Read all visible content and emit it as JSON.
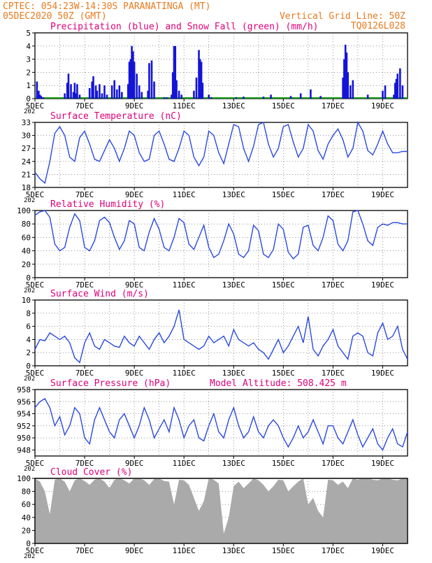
{
  "header": {
    "line1_left": "CPTEC:  054:23W-14:30S  PARANATINGA (MT)",
    "line2_left": "05DEC2020 50Z (GMT)",
    "line1_right": "Vertical Grid Line: 50Z",
    "line2_right": "TQ0126L028",
    "colors": {
      "header": "#e87a1e",
      "title": "#e0007a"
    }
  },
  "x_axis": {
    "labels": [
      "5DEC",
      "7DEC",
      "9DEC",
      "11DEC",
      "13DEC",
      "15DEC",
      "17DEC",
      "19DEC"
    ],
    "days": [
      0,
      2,
      4,
      6,
      8,
      10,
      12,
      14
    ],
    "span_days": 15.0,
    "under_label": "202"
  },
  "chart_data": [
    {
      "id": "precip",
      "type": "bar",
      "title": "Precipitation (blue) and Snow Fall (green) (mm/h)",
      "ylim": [
        0,
        5
      ],
      "yticks": [
        0,
        1,
        2,
        3,
        4,
        5
      ],
      "colors": {
        "rain": "#1414d8",
        "snow": "#18a018"
      },
      "series": [
        {
          "name": "rain",
          "x": [
            0.08,
            0.15,
            0.2,
            0.25,
            0.33,
            1.2,
            1.3,
            1.35,
            1.45,
            1.55,
            1.6,
            1.65,
            1.7,
            1.8,
            2.2,
            2.3,
            2.35,
            2.45,
            2.5,
            2.6,
            2.7,
            2.8,
            2.9,
            3.1,
            3.2,
            3.3,
            3.4,
            3.5,
            3.75,
            3.8,
            3.85,
            3.9,
            3.95,
            4.0,
            4.1,
            4.2,
            4.3,
            4.55,
            4.6,
            4.7,
            4.8,
            5.2,
            5.3,
            5.5,
            5.55,
            5.6,
            5.65,
            5.7,
            5.8,
            5.9,
            6.4,
            6.5,
            6.6,
            6.65,
            6.7,
            6.75,
            7.0,
            7.1,
            8.1,
            8.4,
            9.2,
            9.5,
            10.3,
            10.7,
            11.1,
            11.5,
            12.4,
            12.45,
            12.5,
            12.55,
            12.6,
            12.7,
            12.8,
            13.4,
            14.0,
            14.1,
            14.45,
            14.5,
            14.55,
            14.6,
            14.7,
            14.8
          ],
          "values": [
            1.3,
            0.6,
            0.3,
            0.2,
            0.1,
            0.4,
            1.2,
            1.9,
            1.1,
            0.5,
            1.2,
            0.4,
            1.1,
            0.3,
            0.8,
            1.3,
            1.7,
            1.0,
            0.6,
            1.1,
            0.4,
            1.0,
            0.3,
            1.0,
            1.4,
            0.7,
            1.0,
            0.5,
            1.1,
            2.8,
            3.0,
            4.0,
            3.6,
            2.8,
            1.9,
            1.0,
            0.5,
            0.6,
            2.7,
            2.9,
            1.3,
            0.1,
            0.1,
            0.3,
            2.0,
            4.0,
            4.0,
            1.4,
            0.6,
            0.3,
            0.6,
            1.6,
            3.7,
            3.0,
            2.8,
            1.2,
            0.3,
            0.1,
            0.1,
            0.15,
            0.15,
            0.3,
            0.2,
            0.4,
            0.7,
            0.2,
            1.6,
            3.0,
            4.1,
            3.5,
            2.0,
            1.0,
            1.4,
            0.3,
            0.6,
            1.0,
            0.3,
            1.2,
            1.5,
            1.9,
            2.3,
            1.0
          ]
        },
        {
          "name": "snow",
          "x": [],
          "values": []
        }
      ]
    },
    {
      "id": "temp",
      "type": "line",
      "title": "Surface Temperature (nC)",
      "ylim": [
        18,
        33
      ],
      "yticks": [
        18,
        21,
        24,
        27,
        30,
        33
      ],
      "color": "#2a4ae0",
      "x": [
        0,
        0.2,
        0.4,
        0.6,
        0.8,
        1.0,
        1.2,
        1.4,
        1.6,
        1.8,
        2.0,
        2.2,
        2.4,
        2.6,
        2.8,
        3.0,
        3.2,
        3.4,
        3.6,
        3.8,
        4.0,
        4.2,
        4.4,
        4.6,
        4.8,
        5.0,
        5.2,
        5.4,
        5.6,
        5.8,
        6.0,
        6.2,
        6.4,
        6.6,
        6.8,
        7.0,
        7.2,
        7.4,
        7.6,
        7.8,
        8.0,
        8.2,
        8.4,
        8.6,
        8.8,
        9.0,
        9.2,
        9.4,
        9.6,
        9.8,
        10.0,
        10.2,
        10.4,
        10.6,
        10.8,
        11.0,
        11.2,
        11.4,
        11.6,
        11.8,
        12.0,
        12.2,
        12.4,
        12.6,
        12.8,
        13.0,
        13.2,
        13.4,
        13.6,
        13.8,
        14.0,
        14.2,
        14.4,
        14.6,
        14.8,
        15.0
      ],
      "values": [
        21.5,
        20.0,
        19.0,
        24.0,
        30.5,
        32.0,
        30.0,
        25.0,
        24.0,
        29.5,
        31.0,
        28.0,
        24.5,
        24.0,
        26.5,
        29.0,
        27.0,
        24.0,
        27.0,
        31.0,
        30.0,
        26.0,
        24.0,
        24.5,
        30.0,
        31.0,
        28.0,
        24.5,
        24.0,
        27.0,
        31.0,
        30.0,
        25.0,
        23.0,
        25.0,
        31.0,
        30.0,
        26.0,
        23.5,
        28.0,
        32.5,
        32.0,
        27.0,
        24.0,
        27.5,
        32.5,
        33.0,
        28.0,
        25.0,
        27.0,
        32.0,
        32.5,
        28.5,
        25.0,
        27.0,
        32.5,
        31.0,
        26.5,
        24.5,
        28.0,
        30.0,
        31.5,
        29.0,
        25.0,
        27.0,
        33.0,
        31.0,
        26.5,
        25.5,
        28.0,
        31.0,
        28.0,
        26.0,
        26.0,
        26.3,
        26.3
      ]
    },
    {
      "id": "rh",
      "type": "line",
      "title": "Relative Humidity (%)",
      "ylim": [
        0,
        100
      ],
      "yticks": [
        0,
        20,
        40,
        60,
        80,
        100
      ],
      "color": "#2a4ae0",
      "x": [
        0,
        0.2,
        0.4,
        0.6,
        0.8,
        1.0,
        1.2,
        1.4,
        1.6,
        1.8,
        2.0,
        2.2,
        2.4,
        2.6,
        2.8,
        3.0,
        3.2,
        3.4,
        3.6,
        3.8,
        4.0,
        4.2,
        4.4,
        4.6,
        4.8,
        5.0,
        5.2,
        5.4,
        5.6,
        5.8,
        6.0,
        6.2,
        6.4,
        6.6,
        6.8,
        7.0,
        7.2,
        7.4,
        7.6,
        7.8,
        8.0,
        8.2,
        8.4,
        8.6,
        8.8,
        9.0,
        9.2,
        9.4,
        9.6,
        9.8,
        10.0,
        10.2,
        10.4,
        10.6,
        10.8,
        11.0,
        11.2,
        11.4,
        11.6,
        11.8,
        12.0,
        12.2,
        12.4,
        12.6,
        12.8,
        13.0,
        13.2,
        13.4,
        13.6,
        13.8,
        14.0,
        14.2,
        14.4,
        14.6,
        14.8,
        15.0
      ],
      "values": [
        93,
        98,
        100,
        90,
        50,
        40,
        45,
        75,
        95,
        85,
        45,
        40,
        55,
        85,
        90,
        82,
        60,
        42,
        55,
        85,
        80,
        45,
        40,
        68,
        88,
        72,
        45,
        40,
        60,
        88,
        82,
        50,
        42,
        60,
        78,
        45,
        30,
        35,
        55,
        80,
        65,
        35,
        30,
        40,
        78,
        70,
        35,
        30,
        42,
        80,
        72,
        38,
        28,
        35,
        75,
        78,
        48,
        40,
        60,
        92,
        85,
        50,
        40,
        55,
        98,
        100,
        80,
        55,
        48,
        75,
        80,
        78,
        82,
        82,
        80,
        80
      ]
    },
    {
      "id": "wind",
      "type": "line",
      "title": "Surface Wind (m/s)",
      "ylim": [
        0,
        10
      ],
      "yticks": [
        0,
        2,
        4,
        6,
        8,
        10
      ],
      "color": "#2a4ae0",
      "x": [
        0,
        0.2,
        0.4,
        0.6,
        0.8,
        1.0,
        1.2,
        1.4,
        1.6,
        1.8,
        2.0,
        2.2,
        2.4,
        2.6,
        2.8,
        3.0,
        3.2,
        3.4,
        3.6,
        3.8,
        4.0,
        4.2,
        4.4,
        4.6,
        4.8,
        5.0,
        5.2,
        5.4,
        5.6,
        5.8,
        6.0,
        6.2,
        6.4,
        6.6,
        6.8,
        7.0,
        7.2,
        7.4,
        7.6,
        7.8,
        8.0,
        8.2,
        8.4,
        8.6,
        8.8,
        9.0,
        9.2,
        9.4,
        9.6,
        9.8,
        10.0,
        10.2,
        10.4,
        10.6,
        10.8,
        11.0,
        11.2,
        11.4,
        11.6,
        11.8,
        12.0,
        12.2,
        12.4,
        12.6,
        12.8,
        13.0,
        13.2,
        13.4,
        13.6,
        13.8,
        14.0,
        14.2,
        14.4,
        14.6,
        14.8,
        15.0
      ],
      "values": [
        2.5,
        4.0,
        3.8,
        5.0,
        4.5,
        4.0,
        4.5,
        3.5,
        1.2,
        0.5,
        3.5,
        5.0,
        3.0,
        2.5,
        4.0,
        3.5,
        3.0,
        2.8,
        4.5,
        3.5,
        3.0,
        4.5,
        3.5,
        2.5,
        4.0,
        5.0,
        3.5,
        4.5,
        6.0,
        8.5,
        4.0,
        3.5,
        3.0,
        2.5,
        3.0,
        4.5,
        3.5,
        4.0,
        4.5,
        3.0,
        5.5,
        4.0,
        3.5,
        3.0,
        3.5,
        2.5,
        2.0,
        1.0,
        2.5,
        4.0,
        2.0,
        3.0,
        4.5,
        6.0,
        3.5,
        7.5,
        2.5,
        1.5,
        3.0,
        4.0,
        5.5,
        3.0,
        2.0,
        1.0,
        4.5,
        5.0,
        4.5,
        2.0,
        1.5,
        5.0,
        6.5,
        4.0,
        4.5,
        6.0,
        2.5,
        1.0
      ]
    },
    {
      "id": "pressure",
      "type": "line",
      "title": "Surface Pressure (hPa)",
      "subtitle": "Model Altitude: 508.425 m",
      "ylim": [
        947,
        958
      ],
      "yticks": [
        948,
        950,
        952,
        954,
        956,
        958
      ],
      "color": "#2a4ae0",
      "x": [
        0,
        0.2,
        0.4,
        0.6,
        0.8,
        1.0,
        1.2,
        1.4,
        1.6,
        1.8,
        2.0,
        2.2,
        2.4,
        2.6,
        2.8,
        3.0,
        3.2,
        3.4,
        3.6,
        3.8,
        4.0,
        4.2,
        4.4,
        4.6,
        4.8,
        5.0,
        5.2,
        5.4,
        5.6,
        5.8,
        6.0,
        6.2,
        6.4,
        6.6,
        6.8,
        7.0,
        7.2,
        7.4,
        7.6,
        7.8,
        8.0,
        8.2,
        8.4,
        8.6,
        8.8,
        9.0,
        9.2,
        9.4,
        9.6,
        9.8,
        10.0,
        10.2,
        10.4,
        10.6,
        10.8,
        11.0,
        11.2,
        11.4,
        11.6,
        11.8,
        12.0,
        12.2,
        12.4,
        12.6,
        12.8,
        13.0,
        13.2,
        13.4,
        13.6,
        13.8,
        14.0,
        14.2,
        14.4,
        14.6,
        14.8,
        15.0
      ],
      "values": [
        955,
        956,
        956.5,
        955,
        952,
        953.5,
        950.5,
        952,
        955,
        954,
        950,
        949,
        953,
        955,
        953,
        951,
        950,
        953,
        954,
        952,
        950,
        952,
        955,
        953,
        950,
        951.5,
        953,
        951,
        955,
        953,
        950,
        952,
        953,
        950,
        949.5,
        952,
        954,
        951,
        950,
        953,
        955,
        952,
        950,
        951,
        953.5,
        951,
        950,
        952,
        953,
        952,
        950,
        948.5,
        950,
        952,
        950,
        951,
        953,
        951,
        949,
        952,
        952,
        950,
        949,
        951,
        953,
        950.5,
        948.5,
        950,
        951.5,
        949,
        948,
        950,
        951.5,
        949,
        948.5,
        951
      ]
    },
    {
      "id": "cloud",
      "type": "area",
      "title": "Cloud Cover (%)",
      "ylim": [
        0,
        100
      ],
      "yticks": [
        0,
        20,
        40,
        60,
        80,
        100
      ],
      "color": "#aaaaaa",
      "x": [
        0,
        0.2,
        0.4,
        0.6,
        0.8,
        1.0,
        1.2,
        1.4,
        1.6,
        1.8,
        2.0,
        2.2,
        2.4,
        2.6,
        2.8,
        3.0,
        3.2,
        3.4,
        3.6,
        3.8,
        4.0,
        4.2,
        4.4,
        4.6,
        4.8,
        5.0,
        5.2,
        5.4,
        5.6,
        5.8,
        6.0,
        6.2,
        6.4,
        6.6,
        6.8,
        7.0,
        7.2,
        7.4,
        7.6,
        7.8,
        8.0,
        8.2,
        8.4,
        8.6,
        8.8,
        9.0,
        9.2,
        9.4,
        9.6,
        9.8,
        10.0,
        10.2,
        10.4,
        10.6,
        10.8,
        11.0,
        11.2,
        11.4,
        11.6,
        11.8,
        12.0,
        12.2,
        12.4,
        12.6,
        12.8,
        13.0,
        13.2,
        13.4,
        13.6,
        13.8,
        14.0,
        14.2,
        14.4,
        14.6,
        14.8,
        15.0
      ],
      "values": [
        100,
        95,
        80,
        45,
        98,
        100,
        95,
        80,
        97,
        100,
        96,
        90,
        98,
        100,
        95,
        85,
        98,
        100,
        97,
        92,
        100,
        100,
        97,
        90,
        99,
        100,
        96,
        95,
        60,
        98,
        97,
        90,
        70,
        50,
        65,
        100,
        98,
        92,
        15,
        40,
        88,
        95,
        85,
        92,
        100,
        97,
        90,
        80,
        88,
        98,
        97,
        80,
        88,
        95,
        100,
        60,
        70,
        50,
        40,
        98,
        97,
        90,
        95,
        85,
        100,
        98,
        100,
        100,
        98,
        97,
        100,
        100,
        98,
        97,
        100,
        100
      ]
    }
  ]
}
